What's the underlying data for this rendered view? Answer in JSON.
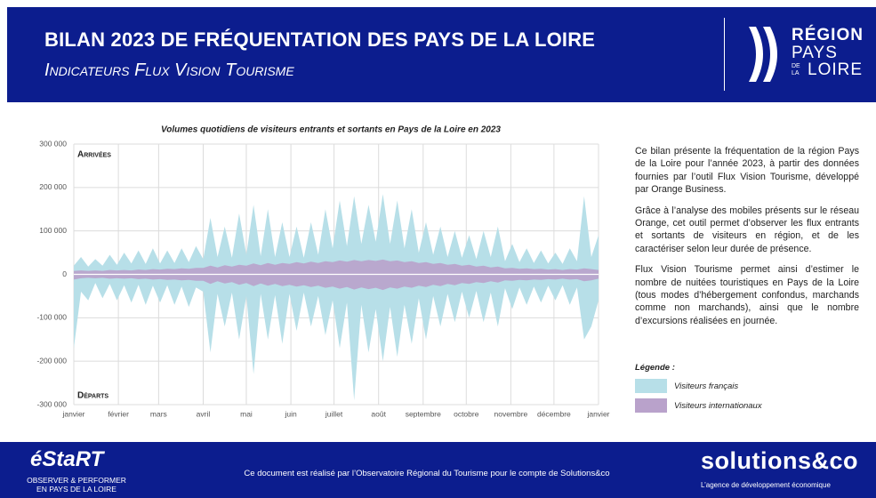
{
  "header": {
    "title": "BILAN 2023 DE FRÉQUENTATION DES PAYS DE LA LOIRE",
    "subtitle": "Indicateurs Flux Vision Tourisme",
    "logo": [
      "RÉGION",
      "PAYS",
      "DE LA",
      "LOIRE"
    ]
  },
  "chart_data": {
    "type": "area",
    "title": "Volumes quotidiens de visiteurs entrants et sortants en Pays de la Loire en 2023",
    "top_label": "Arrivées",
    "bottom_label": "Départs",
    "x": [
      0,
      5,
      10,
      15,
      20,
      25,
      30,
      35,
      40,
      45,
      50,
      55,
      60,
      65,
      70,
      75,
      80,
      85,
      90,
      95,
      100,
      105,
      110,
      115,
      120,
      125,
      130,
      135,
      140,
      145,
      150,
      155,
      160,
      165,
      170,
      175,
      180,
      185,
      190,
      195,
      200,
      205,
      210,
      215,
      220,
      225,
      230,
      235,
      240,
      245,
      250,
      255,
      260,
      265,
      270,
      275,
      280,
      285,
      290,
      295,
      300,
      305,
      310,
      315,
      320,
      325,
      330,
      335,
      340,
      345,
      350,
      355,
      360,
      365
    ],
    "xlim": [
      0,
      365
    ],
    "xticks": [
      {
        "value": 0,
        "label": "janvier"
      },
      {
        "value": 31,
        "label": "février"
      },
      {
        "value": 59,
        "label": "mars"
      },
      {
        "value": 90,
        "label": "avril"
      },
      {
        "value": 120,
        "label": "mai"
      },
      {
        "value": 151,
        "label": "juin"
      },
      {
        "value": 181,
        "label": "juillet"
      },
      {
        "value": 212,
        "label": "août"
      },
      {
        "value": 243,
        "label": "septembre"
      },
      {
        "value": 273,
        "label": "octobre"
      },
      {
        "value": 304,
        "label": "novembre"
      },
      {
        "value": 334,
        "label": "décembre"
      },
      {
        "value": 365,
        "label": "janvier"
      }
    ],
    "ylim": [
      -300000,
      300000
    ],
    "yticks": [
      {
        "value": 300000,
        "label": "300 000"
      },
      {
        "value": 200000,
        "label": "200 000"
      },
      {
        "value": 100000,
        "label": "100 000"
      },
      0,
      {
        "value": -100000,
        "label": "-100 000"
      },
      {
        "value": -200000,
        "label": "-200 000"
      },
      {
        "value": -300000,
        "label": "-300 000"
      }
    ],
    "grid": true,
    "legend_title": "Légende :",
    "series": [
      {
        "name": "Visiteurs français",
        "color": "#b7dfe8",
        "arrivals": [
          20000,
          40000,
          18000,
          35000,
          20000,
          45000,
          22000,
          50000,
          25000,
          55000,
          24000,
          60000,
          25000,
          55000,
          26000,
          60000,
          28000,
          65000,
          35000,
          130000,
          40000,
          110000,
          38000,
          140000,
          45000,
          160000,
          42000,
          150000,
          40000,
          120000,
          40000,
          110000,
          38000,
          120000,
          45000,
          150000,
          60000,
          170000,
          65000,
          180000,
          70000,
          160000,
          75000,
          185000,
          70000,
          170000,
          60000,
          150000,
          50000,
          120000,
          45000,
          110000,
          40000,
          100000,
          38000,
          90000,
          35000,
          100000,
          40000,
          110000,
          30000,
          70000,
          28000,
          60000,
          26000,
          55000,
          25000,
          50000,
          24000,
          60000,
          30000,
          180000,
          40000,
          90000
        ],
        "departures": [
          -170000,
          -40000,
          -60000,
          -20000,
          -55000,
          -22000,
          -60000,
          -25000,
          -65000,
          -24000,
          -70000,
          -26000,
          -65000,
          -25000,
          -70000,
          -28000,
          -75000,
          -30000,
          -40000,
          -180000,
          -45000,
          -120000,
          -42000,
          -150000,
          -50000,
          -230000,
          -45000,
          -150000,
          -48000,
          -160000,
          -45000,
          -130000,
          -42000,
          -120000,
          -50000,
          -140000,
          -60000,
          -170000,
          -65000,
          -290000,
          -70000,
          -180000,
          -80000,
          -200000,
          -75000,
          -190000,
          -70000,
          -160000,
          -55000,
          -150000,
          -50000,
          -120000,
          -45000,
          -110000,
          -40000,
          -100000,
          -38000,
          -110000,
          -42000,
          -120000,
          -32000,
          -80000,
          -30000,
          -70000,
          -28000,
          -65000,
          -26000,
          -60000,
          -25000,
          -70000,
          -30000,
          -150000,
          -120000,
          -60000
        ]
      },
      {
        "name": "Visiteurs internationaux",
        "color": "#b9a2cb",
        "arrivals": [
          8000,
          9000,
          8000,
          9000,
          8000,
          10000,
          9000,
          10000,
          9000,
          11000,
          10000,
          12000,
          11000,
          13000,
          12000,
          14000,
          13000,
          15000,
          15000,
          20000,
          16000,
          21000,
          18000,
          22000,
          20000,
          25000,
          21000,
          26000,
          22000,
          26000,
          24000,
          28000,
          25000,
          29000,
          26000,
          30000,
          28000,
          32000,
          29000,
          33000,
          30000,
          33000,
          31000,
          34000,
          30000,
          32000,
          28000,
          30000,
          26000,
          28000,
          24000,
          26000,
          22000,
          24000,
          20000,
          22000,
          18000,
          20000,
          16000,
          18000,
          14000,
          15000,
          13000,
          14000,
          12000,
          13000,
          11000,
          12000,
          10000,
          12000,
          11000,
          14000,
          12000,
          10000
        ],
        "departures": [
          -12000,
          -9000,
          -8000,
          -9000,
          -8000,
          -10000,
          -9000,
          -10000,
          -9000,
          -11000,
          -10000,
          -12000,
          -11000,
          -13000,
          -12000,
          -14000,
          -13000,
          -15000,
          -15000,
          -22000,
          -16000,
          -21000,
          -18000,
          -24000,
          -20000,
          -27000,
          -21000,
          -26000,
          -22000,
          -27000,
          -24000,
          -28000,
          -25000,
          -29000,
          -26000,
          -31000,
          -28000,
          -33000,
          -29000,
          -35000,
          -30000,
          -34000,
          -31000,
          -36000,
          -30000,
          -33000,
          -28000,
          -31000,
          -26000,
          -29000,
          -24000,
          -27000,
          -22000,
          -25000,
          -20000,
          -22000,
          -18000,
          -20000,
          -16000,
          -19000,
          -14000,
          -15000,
          -13000,
          -14000,
          -12000,
          -13000,
          -11000,
          -12000,
          -10000,
          -12000,
          -11000,
          -16000,
          -14000,
          -10000
        ]
      }
    ]
  },
  "text": {
    "paragraphs": [
      "Ce bilan présente la fréquentation de la région Pays de la Loire pour l’année 2023, à partir des données fournies par l’outil Flux Vision Tourisme, développé par Orange Business.",
      "Grâce à l’analyse des mobiles présents sur le réseau Orange, cet outil permet d’observer les flux entrants et sortants de visiteurs en région, et de les caractériser selon leur durée de présence.",
      "Flux Vision Tourisme permet ainsi d’estimer le nombre de nuitées touristiques en Pays de la Loire (tous modes d’hébergement confondus, marchands comme non marchands), ainsi que le nombre d’excursions réalisées en journée."
    ]
  },
  "footer": {
    "left_logo": "éStaRT",
    "left_tagline": [
      "OBSERVER & PERFORMER",
      "EN PAYS DE LA LOIRE"
    ],
    "center": "Ce document est réalisé par l’Observatoire Régional du Tourisme pour le compte de Solutions&co",
    "right_logo": "solutions&co",
    "right_tagline": "L’agence de développement économique"
  }
}
